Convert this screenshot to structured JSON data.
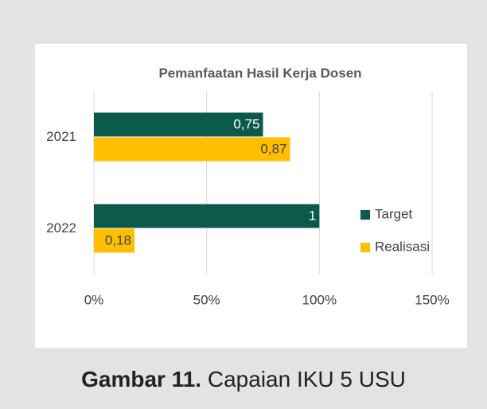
{
  "chart_data": {
    "type": "barh",
    "title": "Pemanfaatan Hasil Kerja Dosen",
    "categories": [
      "2021",
      "2022"
    ],
    "series": [
      {
        "name": "Target",
        "color": "#0b5a4b",
        "values": [
          0.75,
          1
        ],
        "value_labels": [
          "0,75",
          "1"
        ]
      },
      {
        "name": "Realisasi",
        "color": "#fdbf00",
        "values": [
          0.87,
          0.18
        ],
        "value_labels": [
          "0,87",
          "0,18"
        ]
      }
    ],
    "xlim": [
      0,
      1.5
    ],
    "xticks": [
      {
        "value": 0,
        "label": "0%"
      },
      {
        "value": 0.5,
        "label": "50%"
      },
      {
        "value": 1,
        "label": "100%"
      },
      {
        "value": 1.5,
        "label": "150%"
      }
    ],
    "grid": true,
    "legend": "right"
  },
  "caption": {
    "label": "Gambar 11.",
    "text": "Capaian IKU 5 USU"
  }
}
